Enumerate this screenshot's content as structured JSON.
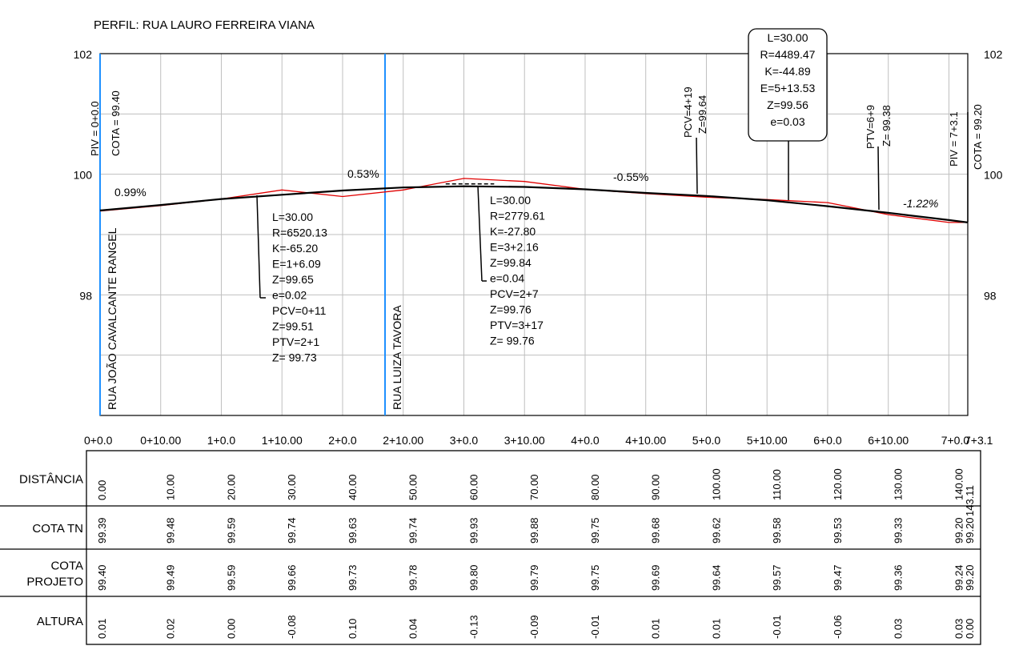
{
  "title": "PERFIL: RUA LAURO FERREIRA VIANA",
  "colors": {
    "terrain": "#e00000",
    "project": "#000000",
    "street": "#1e90ff",
    "grid": "#bfbfbf"
  },
  "y_axis": {
    "ticks": [
      102,
      100,
      98
    ],
    "range": [
      96,
      102
    ]
  },
  "x_axis": {
    "labels": [
      "0+0.0",
      "0+10.00",
      "1+0.0",
      "1+10.00",
      "2+0.0",
      "2+10.00",
      "3+0.0",
      "3+10.00",
      "4+0.0",
      "4+10.00",
      "5+0.0",
      "5+10.00",
      "6+0.0",
      "6+10.00",
      "7+0.0",
      "7+3.1"
    ],
    "positions": [
      0,
      10,
      20,
      30,
      40,
      50,
      60,
      70,
      80,
      90,
      100,
      110,
      120,
      130,
      140,
      143.11
    ]
  },
  "streets": [
    {
      "label": "RUA JOÃO CAVALCANTE RANGEL",
      "x": 0
    },
    {
      "label": "RUA LUIZA TAVORA",
      "x": 47
    }
  ],
  "piv_labels": {
    "start": "PIV = 0+0.0",
    "start_cota": "COTA = 99.40",
    "end": "PIV = 7+3.1",
    "end_cota": "COTA = 99.20"
  },
  "pcv_label": {
    "line1": "PCV=4+19",
    "line2": "Z=99.64"
  },
  "ptv_label": {
    "line1": "PTV=6+9",
    "line2": "Z= 99.38"
  },
  "grades": [
    "0.99%",
    "0.53%",
    "-0.55%",
    "-1.22%"
  ],
  "curve1": [
    "L=30.00",
    "R=6520.13",
    "K=-65.20",
    "E=1+6.09",
    "Z=99.65",
    "e=0.02",
    "PCV=0+11",
    "Z=99.51",
    "PTV=2+1",
    "Z= 99.73"
  ],
  "curve2": [
    "L=30.00",
    "R=2779.61",
    "K=-27.80",
    "E=3+2.16",
    "Z=99.84",
    "e=0.04",
    "PCV=2+7",
    "Z=99.76",
    "PTV=3+17",
    "Z= 99.76"
  ],
  "curve3": [
    "L=30.00",
    "R=4489.47",
    "K=-44.89",
    "E=5+13.53",
    "Z=99.56",
    "e=0.03"
  ],
  "chart_data": {
    "type": "line",
    "title": "PERFIL: RUA LAURO FERREIRA VIANA",
    "ylim": [
      96,
      102
    ],
    "xlim": [
      0,
      143.11
    ],
    "series": [
      {
        "x": [
          0,
          10,
          20,
          30,
          40,
          50,
          60,
          70,
          80,
          90,
          100,
          110,
          120,
          130,
          140,
          143.11
        ],
        "values": [
          99.39,
          99.48,
          99.59,
          99.74,
          99.63,
          99.74,
          99.93,
          99.88,
          99.75,
          99.68,
          99.62,
          99.58,
          99.53,
          99.33,
          99.2,
          99.2
        ]
      },
      {
        "x": [
          0,
          10,
          20,
          30,
          40,
          50,
          60,
          70,
          80,
          90,
          100,
          110,
          120,
          130,
          140,
          143.11
        ],
        "values": [
          99.4,
          99.49,
          99.59,
          99.66,
          99.73,
          99.78,
          99.8,
          99.79,
          99.75,
          99.69,
          99.64,
          99.57,
          99.47,
          99.36,
          99.24,
          99.2
        ]
      }
    ]
  },
  "table": {
    "rows": [
      {
        "label": "DISTÂNCIA",
        "values": [
          "0.00",
          "10.00",
          "20.00",
          "30.00",
          "40.00",
          "50.00",
          "60.00",
          "70.00",
          "80.00",
          "90.00",
          "100.00",
          "110.00",
          "120.00",
          "130.00",
          "140.00",
          "143.11"
        ]
      },
      {
        "label": "COTA TN",
        "values": [
          "99.39",
          "99.48",
          "99.59",
          "99.74",
          "99.63",
          "99.74",
          "99.93",
          "99.88",
          "99.75",
          "99.68",
          "99.62",
          "99.58",
          "99.53",
          "99.33",
          "99.20",
          "99.20"
        ]
      },
      {
        "label": "COTA\nPROJETO",
        "values": [
          "99.40",
          "99.49",
          "99.59",
          "99.66",
          "99.73",
          "99.78",
          "99.80",
          "99.79",
          "99.75",
          "99.69",
          "99.64",
          "99.57",
          "99.47",
          "99.36",
          "99.24",
          "99.20"
        ]
      },
      {
        "label": "ALTURA",
        "values": [
          "0.01",
          "0.02",
          "0.00",
          "-0.08",
          "0.10",
          "0.04",
          "-0.13",
          "-0.09",
          "-0.01",
          "0.01",
          "0.01",
          "-0.01",
          "-0.06",
          "0.03",
          "0.03",
          "0.00"
        ]
      }
    ]
  }
}
